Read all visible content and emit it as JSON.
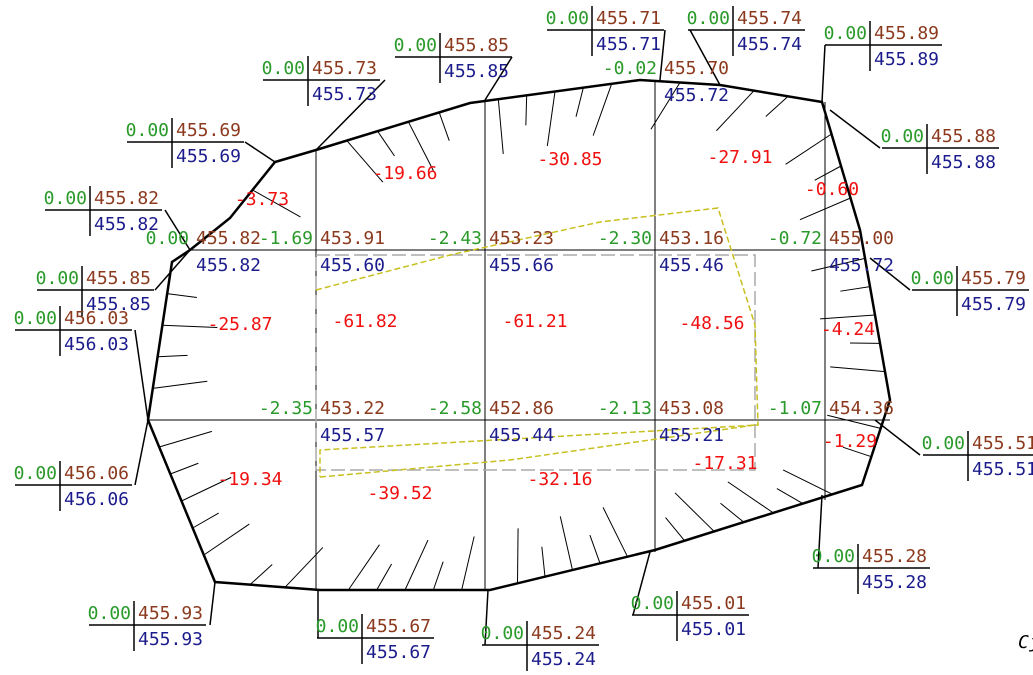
{
  "markers": [
    {
      "cut": "0.00",
      "design": "455.69",
      "existing": "455.69"
    },
    {
      "cut": "0.00",
      "design": "455.73",
      "existing": "455.73"
    },
    {
      "cut": "0.00",
      "design": "455.85",
      "existing": "455.85"
    },
    {
      "cut": "0.00",
      "design": "455.71",
      "existing": "455.71"
    },
    {
      "cut": "0.00",
      "design": "455.74",
      "existing": "455.74"
    },
    {
      "cut": "0.00",
      "design": "455.89",
      "existing": "455.89"
    },
    {
      "cut": "0.00",
      "design": "455.88",
      "existing": "455.88"
    },
    {
      "cut": "0.00",
      "design": "455.82",
      "existing": "455.82"
    },
    {
      "cut": "0.00",
      "design": "455.85",
      "existing": "455.85"
    },
    {
      "cut": "0.00",
      "design": "455.79",
      "existing": "455.79"
    },
    {
      "cut": "0.00",
      "design": "456.03",
      "existing": "456.03"
    },
    {
      "cut": "0.00",
      "design": "455.51",
      "existing": "455.51"
    },
    {
      "cut": "0.00",
      "design": "456.06",
      "existing": "456.06"
    },
    {
      "cut": "0.00",
      "design": "455.28",
      "existing": "455.28"
    },
    {
      "cut": "0.00",
      "design": "455.93",
      "existing": "455.93"
    },
    {
      "cut": "0.00",
      "design": "455.67",
      "existing": "455.67"
    },
    {
      "cut": "0.00",
      "design": "455.24",
      "existing": "455.24"
    },
    {
      "cut": "0.00",
      "design": "455.01",
      "existing": "455.01"
    }
  ],
  "nodes": [
    {
      "cut": "0.00",
      "design": "455.82",
      "existing": "455.82"
    },
    {
      "cut": "-1.69",
      "design": "453.91",
      "existing": "455.60"
    },
    {
      "cut": "-2.43",
      "design": "453.23",
      "existing": "455.66"
    },
    {
      "cut": "-2.30",
      "design": "453.16",
      "existing": "455.46"
    },
    {
      "cut": "-0.72",
      "design": "455.00",
      "existing": "455.72"
    },
    {
      "cut": "-0.02",
      "design": "455.70",
      "existing": "455.72"
    },
    {
      "cut": "-2.35",
      "design": "453.22",
      "existing": "455.57"
    },
    {
      "cut": "-2.58",
      "design": "452.86",
      "existing": "455.44"
    },
    {
      "cut": "-2.13",
      "design": "453.08",
      "existing": "455.21"
    },
    {
      "cut": "-1.07",
      "design": "454.36"
    }
  ],
  "regions": [
    "-3.73",
    "-19.66",
    "-30.85",
    "-27.91",
    "-0.60",
    "-25.87",
    "-61.82",
    "-61.21",
    "-48.56",
    "-4.24",
    "-19.34",
    "-39.52",
    "-32.16",
    "-17.31",
    "-1.29"
  ],
  "note": "Cj"
}
